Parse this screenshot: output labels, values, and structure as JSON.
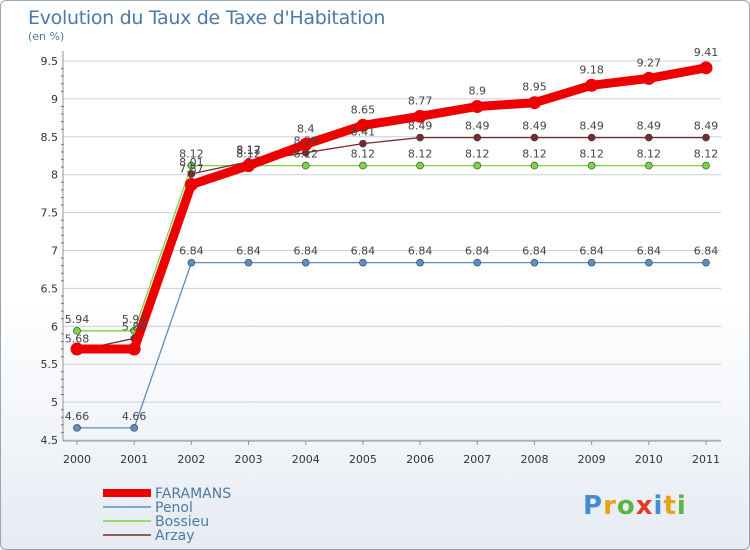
{
  "chart_data": {
    "type": "line",
    "title": "Evolution du Taux de Taxe d'Habitation",
    "subtitle": "(en %)",
    "xlabel": "",
    "ylabel": "(en %)",
    "ylim": [
      4.5,
      9.5
    ],
    "yticks": [
      "4.5",
      "5",
      "5.5",
      "6",
      "6.5",
      "7",
      "7.5",
      "8",
      "8.5",
      "9",
      "9.5"
    ],
    "categories": [
      "2000",
      "2001",
      "2002",
      "2003",
      "2004",
      "2005",
      "2006",
      "2007",
      "2008",
      "2009",
      "2010",
      "2011"
    ],
    "series": [
      {
        "name": "FARAMANS",
        "color": "#ee0000",
        "values": [
          5.7,
          5.7,
          7.87,
          8.12,
          8.4,
          8.65,
          8.77,
          8.9,
          8.95,
          9.18,
          9.27,
          9.41
        ],
        "labels": [
          "",
          "",
          "7.87",
          "8.12",
          "8.4",
          "8.65",
          "8.77",
          "8.9",
          "8.95",
          "9.18",
          "9.27",
          "9.41"
        ]
      },
      {
        "name": "Penol",
        "color": "#5b8fc0",
        "values": [
          4.66,
          4.66,
          6.84,
          6.84,
          6.84,
          6.84,
          6.84,
          6.84,
          6.84,
          6.84,
          6.84,
          6.84
        ],
        "labels": [
          "4.66",
          "4.66",
          "6.84",
          "6.84",
          "6.84",
          "6.84",
          "6.84",
          "6.84",
          "6.84",
          "6.84",
          "6.84",
          "6.84"
        ]
      },
      {
        "name": "Bossieu",
        "color": "#7ed33f",
        "values": [
          5.94,
          5.94,
          8.12,
          8.12,
          8.12,
          8.12,
          8.12,
          8.12,
          8.12,
          8.12,
          8.12,
          8.12
        ],
        "labels": [
          "5.94",
          "5.94",
          "8.12",
          "8.12",
          "8.12",
          "8.12",
          "8.12",
          "8.12",
          "8.12",
          "8.12",
          "8.12",
          "8.12"
        ]
      },
      {
        "name": "Arzay",
        "color": "#7b2a2a",
        "values": [
          5.68,
          5.84,
          8.01,
          8.17,
          8.29,
          8.41,
          8.49,
          8.49,
          8.49,
          8.49,
          8.49,
          8.49
        ],
        "labels": [
          "5.68",
          "5.84",
          "8.01",
          "8.17",
          "8.29",
          "8.41",
          "8.49",
          "8.49",
          "8.49",
          "8.49",
          "8.49",
          "8.49"
        ]
      }
    ],
    "legend_position": "bottom-left"
  },
  "logo": {
    "letters": [
      "P",
      "r",
      "o",
      "x",
      "i",
      "t",
      "i"
    ],
    "colors": [
      "#3f8fd0",
      "#e8a21a",
      "#5bb443",
      "#e23b2e",
      "#3f8fd0",
      "#e8a21a",
      "#5bb443"
    ]
  }
}
